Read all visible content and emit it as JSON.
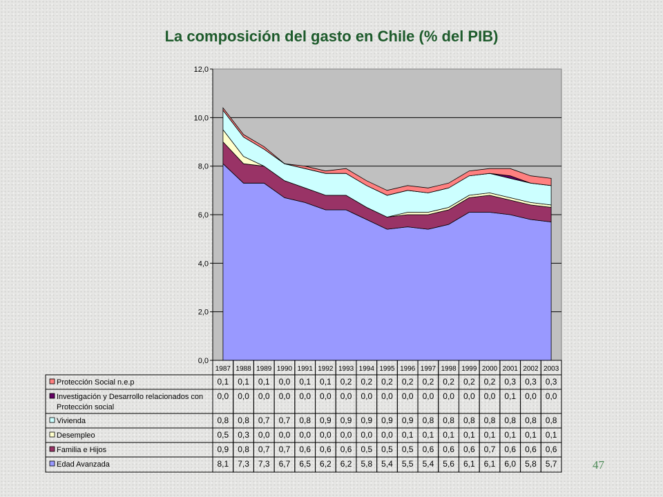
{
  "slide": {
    "title": "La composición del gasto en Chile (% del PIB)",
    "page_number": "47"
  },
  "colors": {
    "title": "#1e5b2c",
    "plot_background": "#c0c0c0"
  },
  "chart_data": {
    "type": "area",
    "stacked": true,
    "ylim": [
      0,
      12
    ],
    "yticks": [
      "0,0",
      "2,0",
      "4,0",
      "6,0",
      "8,0",
      "10,0",
      "12,0"
    ],
    "categories": [
      "1987",
      "1988",
      "1989",
      "1990",
      "1991",
      "1992",
      "1993",
      "1994",
      "1995",
      "1996",
      "1997",
      "1998",
      "1999",
      "2000",
      "2001",
      "2002",
      "2003"
    ],
    "grid": true,
    "legend": "data table below chart",
    "series": [
      {
        "name": "Edad Avanzada",
        "color": "#9999ff",
        "labels": [
          "8,1",
          "7,3",
          "7,3",
          "6,7",
          "6,5",
          "6,2",
          "6,2",
          "5,8",
          "5,4",
          "5,5",
          "5,4",
          "5,6",
          "6,1",
          "6,1",
          "6,0",
          "5,8",
          "5,7"
        ],
        "values": [
          8.1,
          7.3,
          7.3,
          6.7,
          6.5,
          6.2,
          6.2,
          5.8,
          5.4,
          5.5,
          5.4,
          5.6,
          6.1,
          6.1,
          6.0,
          5.8,
          5.7
        ]
      },
      {
        "name": "Familia e Hijos",
        "color": "#993366",
        "labels": [
          "0,9",
          "0,8",
          "0,7",
          "0,7",
          "0,6",
          "0,6",
          "0,6",
          "0,5",
          "0,5",
          "0,5",
          "0,6",
          "0,6",
          "0,6",
          "0,7",
          "0,6",
          "0,6",
          "0,6"
        ],
        "values": [
          0.9,
          0.8,
          0.7,
          0.7,
          0.6,
          0.6,
          0.6,
          0.5,
          0.5,
          0.5,
          0.6,
          0.6,
          0.6,
          0.7,
          0.6,
          0.6,
          0.6
        ]
      },
      {
        "name": "Desempleo",
        "color": "#ffffcc",
        "labels": [
          "0,5",
          "0,3",
          "0,0",
          "0,0",
          "0,0",
          "0,0",
          "0,0",
          "0,0",
          "0,0",
          "0,1",
          "0,1",
          "0,1",
          "0,1",
          "0,1",
          "0,1",
          "0,1",
          "0,1"
        ],
        "values": [
          0.5,
          0.3,
          0.0,
          0.0,
          0.0,
          0.0,
          0.0,
          0.0,
          0.0,
          0.1,
          0.1,
          0.1,
          0.1,
          0.1,
          0.1,
          0.1,
          0.1
        ]
      },
      {
        "name": "Vivienda",
        "color": "#ccffff",
        "labels": [
          "0,8",
          "0,8",
          "0,7",
          "0,7",
          "0,8",
          "0,9",
          "0,9",
          "0,9",
          "0,9",
          "0,9",
          "0,8",
          "0,8",
          "0,8",
          "0,8",
          "0,8",
          "0,8",
          "0,8"
        ],
        "values": [
          0.8,
          0.8,
          0.7,
          0.7,
          0.8,
          0.9,
          0.9,
          0.9,
          0.9,
          0.9,
          0.8,
          0.8,
          0.8,
          0.8,
          0.8,
          0.8,
          0.8
        ]
      },
      {
        "name": "Investigación y Desarrollo relacionados con Protección social",
        "color": "#660066",
        "labels": [
          "0,0",
          "0,0",
          "0,0",
          "0,0",
          "0,0",
          "0,0",
          "0,0",
          "0,0",
          "0,0",
          "0,0",
          "0,0",
          "0,0",
          "0,0",
          "0,0",
          "0,1",
          "0,0",
          "0,0"
        ],
        "values": [
          0.0,
          0.0,
          0.0,
          0.0,
          0.0,
          0.0,
          0.0,
          0.0,
          0.0,
          0.0,
          0.0,
          0.0,
          0.0,
          0.0,
          0.1,
          0.0,
          0.0
        ]
      },
      {
        "name": "Protección Social n.e.p",
        "color": "#ff8080",
        "labels": [
          "0,1",
          "0,1",
          "0,1",
          "0,0",
          "0,1",
          "0,1",
          "0,2",
          "0,2",
          "0,2",
          "0,2",
          "0,2",
          "0,2",
          "0,2",
          "0,2",
          "0,3",
          "0,3",
          "0,3"
        ],
        "values": [
          0.1,
          0.1,
          0.1,
          0.0,
          0.1,
          0.1,
          0.2,
          0.2,
          0.2,
          0.2,
          0.2,
          0.2,
          0.2,
          0.2,
          0.3,
          0.3,
          0.3
        ]
      }
    ],
    "table_row_order": [
      5,
      4,
      3,
      2,
      1,
      0
    ]
  }
}
